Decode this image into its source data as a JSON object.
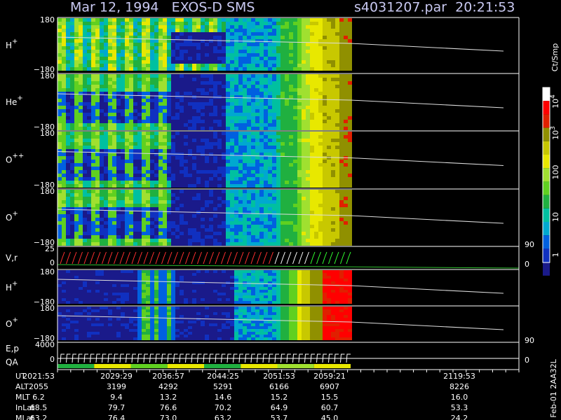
{
  "header": {
    "title": "Mar 12, 1994   EXOS-D SMS",
    "file": "s4031207.par  20:21:53"
  },
  "panels": [
    {
      "label": "H",
      "sup": "+",
      "top": "180",
      "bottom": "−180"
    },
    {
      "label": "He",
      "sup": "+",
      "top": "180",
      "bottom": "−180"
    },
    {
      "label": "O",
      "sup": "++",
      "top": "180",
      "bottom": "−180"
    },
    {
      "label": "O",
      "sup": "+",
      "top": "180",
      "bottom": "−180"
    },
    {
      "label": "V,r",
      "top": "25",
      "bottom": "0",
      "right_top": "90",
      "right_bottom": "0"
    },
    {
      "label": "H",
      "sup": "+",
      "top": "180",
      "bottom": "−180"
    },
    {
      "label": "O",
      "sup": "+",
      "top": "180",
      "bottom": "−180"
    },
    {
      "label": "E,p",
      "label2": "QA",
      "top": "4000",
      "bottom": "0",
      "right_top": "90",
      "right_bottom": "0"
    }
  ],
  "colorbar": {
    "unit": "Ct/Smp",
    "labels": [
      {
        "base": "10",
        "sup": "4"
      },
      {
        "base": "10",
        "sup": "3"
      },
      "100",
      "10",
      "1"
    ]
  },
  "table": {
    "rows": [
      {
        "name": "UT",
        "values": [
          "2021:53",
          "2029:29",
          "2036:57",
          "2044:25",
          "2051:53",
          "2059:21",
          "2119:53"
        ]
      },
      {
        "name": "ALT",
        "values": [
          "2055",
          "3199",
          "4292",
          "5291",
          "6166",
          "6907",
          "8226"
        ]
      },
      {
        "name": "MLT",
        "values": [
          "6.2",
          "9.4",
          "13.2",
          "14.6",
          "15.2",
          "15.5",
          "16.0"
        ]
      },
      {
        "name": "InLat",
        "values": [
          "68.5",
          "79.7",
          "76.6",
          "70.2",
          "64.9",
          "60.7",
          "53.3"
        ]
      },
      {
        "name": "MLat",
        "values": [
          "63.2",
          "76.4",
          "73.0",
          "63.2",
          "53.7",
          "45.0",
          "24.2"
        ]
      }
    ]
  },
  "footer": "Feb-01 2AA32L"
}
